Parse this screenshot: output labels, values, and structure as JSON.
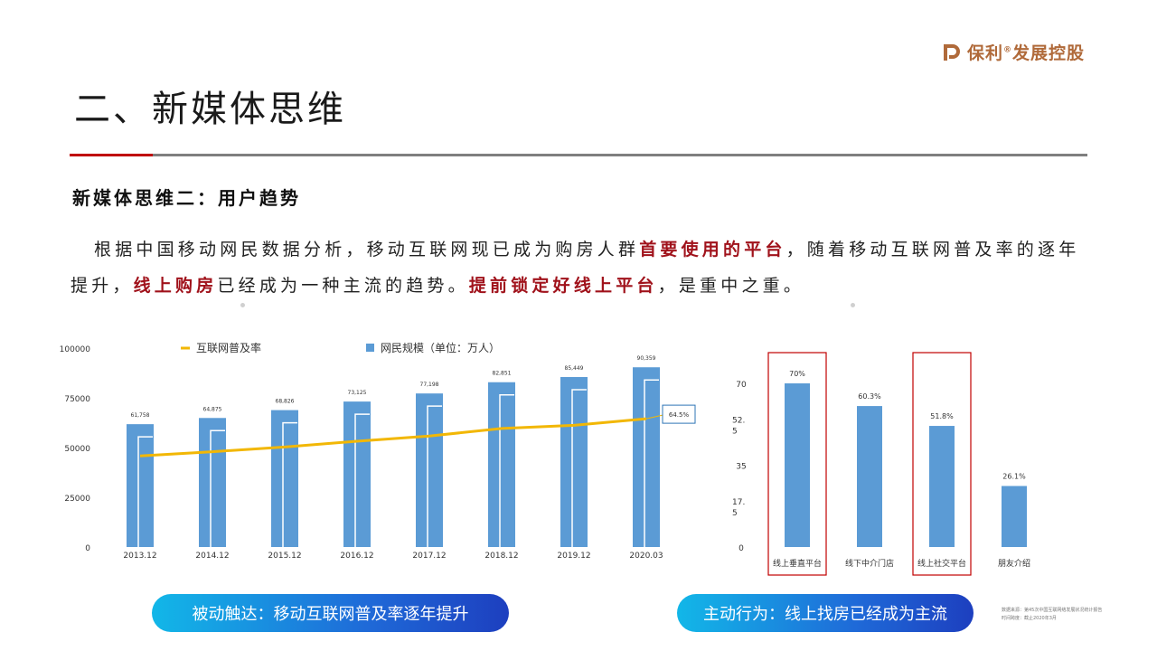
{
  "header": {
    "logo_text": "保利",
    "logo_reg": "®",
    "logo_suffix": "发展控股",
    "title": "二、新媒体思维"
  },
  "section": {
    "title": "新媒体思维二：用户趋势"
  },
  "paragraph": {
    "s1": "根据中国移动网民数据分析，移动互联网现已成为购房人群",
    "e1": "首要使用的平台",
    "s2": "，随着移动互联网普及率的逐年提升，",
    "e2": "线上购房",
    "s3": "已经成为一种主流的趋势。",
    "e3": "提前锁定好线上平台",
    "s4": "，是重中之重。"
  },
  "chart_data": [
    {
      "type": "bar",
      "legend": [
        "互联网普及率",
        "网民规模（单位：万人）"
      ],
      "legend_placement": "top",
      "categories": [
        "2013.12",
        "2014.12",
        "2015.12",
        "2016.12",
        "2017.12",
        "2018.12",
        "2019.12",
        "2020.03"
      ],
      "series": [
        {
          "name": "网民规模（单位：万人）",
          "type": "bar",
          "color": "#5b9bd5",
          "values": [
            61758,
            64875,
            68826,
            73125,
            77198,
            82851,
            85449,
            90359
          ],
          "labels": [
            "61,758",
            "64,875",
            "68,826",
            "73,125",
            "77,198",
            "82,851",
            "85,449",
            "90,359"
          ]
        },
        {
          "name": "互联网普及率",
          "type": "line",
          "color": "#f2b705",
          "values": [
            45.8,
            47.9,
            50.3,
            53.2,
            55.8,
            59.6,
            61.2,
            64.5
          ],
          "end_label": "64.5%"
        }
      ],
      "y_ticks": [
        "0",
        "25000",
        "50000",
        "75000",
        "100000"
      ],
      "ylim": [
        0,
        100000
      ],
      "grid": false
    },
    {
      "type": "bar",
      "categories": [
        "线上垂直平台",
        "线下中介门店",
        "线上社交平台",
        "朋友介绍"
      ],
      "values": [
        70,
        60.3,
        51.8,
        26.1
      ],
      "labels": [
        "70%",
        "60.3%",
        "51.8%",
        "26.1%"
      ],
      "highlighted": [
        "线上垂直平台",
        "线上社交平台"
      ],
      "color": "#5b9bd5",
      "highlight_color": "#c00000",
      "y_ticks": [
        "0",
        "17.5",
        "35",
        "52.5",
        "70"
      ],
      "ylim": [
        0,
        70
      ],
      "grid": false
    }
  ],
  "callouts": {
    "left": "被动触达：移动互联网普及率逐年提升",
    "right": "主动行为：线上找房已经成为主流"
  },
  "source": {
    "line1": "数据来源：第45次中国互联网络发展状况统计报告",
    "line2": "时间跨度：截止2020年3月"
  }
}
